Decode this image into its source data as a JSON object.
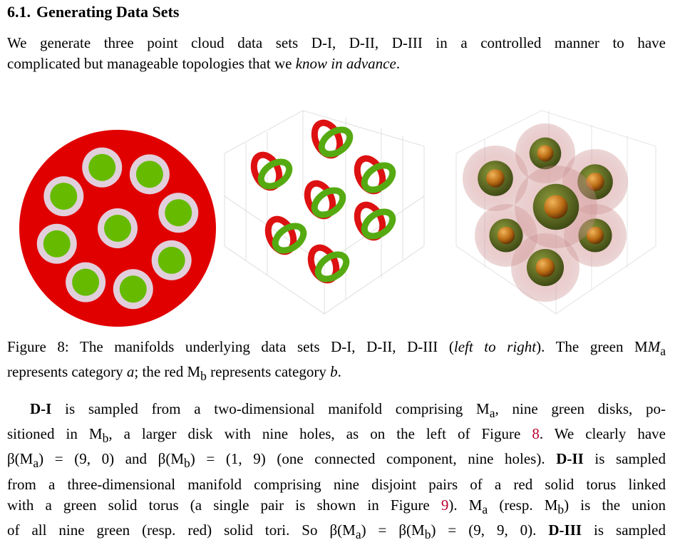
{
  "section": {
    "number": "6.1.",
    "title": "Generating Data Sets"
  },
  "intro": {
    "line1": "We generate three point cloud data sets D-I, D-II, D-III in a controlled manner to have",
    "line2_pre": "complicated but manageable topologies that we ",
    "line2_em": "know in advance",
    "line2_post": "."
  },
  "figure": {
    "panels": [
      "D-I",
      "D-II",
      "D-III"
    ],
    "colors": {
      "red": "#e00000",
      "green": "#66bb00",
      "ring": "#e2cfdc",
      "torus_green": "#55aa11",
      "torus_red": "#dd1111",
      "pink_shell": "#e9b5b5",
      "olive": "#6b7a2a",
      "orange_core": "#c97a1a"
    }
  },
  "caption": {
    "line1_pre": "Figure 8: The manifolds underlying data sets D-I, D-II, D-III (",
    "line1_em": "left to right",
    "line1_post": "). The green M",
    "line1_sub": "a",
    "line2_pre": "represents category ",
    "line2_a": "a",
    "line2_mid": "; the red M",
    "line2_sub": "b",
    "line2_post": " represents category ",
    "line2_b": "b",
    "line2_end": "."
  },
  "body": {
    "l1_bold": "D-I",
    "l1_text": " is sampled from a two-dimensional manifold comprising M",
    "l1_sub": "a",
    "l1_end": ", nine green disks, po-",
    "l2_pre": "sitioned in M",
    "l2_sub": "b",
    "l2_mid": ", a larger disk with nine holes, as on the left of Figure ",
    "l2_ref": "8",
    "l2_end": ". We clearly have",
    "l3_a": "β(M",
    "l3_a_sub": "a",
    "l3_a_val": ") = (9, 0) and β(M",
    "l3_b_sub": "b",
    "l3_b_val": ") = (1, 9) (one connected component, nine holes). ",
    "l3_bold": "D-II",
    "l3_end": " is sampled",
    "l4": "from a three-dimensional manifold comprising nine disjoint pairs of a red solid torus linked",
    "l5_pre": "with a green solid torus (a single pair is shown in Figure ",
    "l5_ref": "9",
    "l5_mid": "). M",
    "l5_sub_a": "a",
    "l5_mid2": " (resp. M",
    "l5_sub_b": "b",
    "l5_end": ") is the union",
    "l6_pre": "of all nine green (resp. red) solid tori. So β(M",
    "l6_sub_a": "a",
    "l6_mid": ") = β(M",
    "l6_sub_b": "b",
    "l6_mid2": ") = (9, 9, 0). ",
    "l6_bold": "D-III",
    "l6_end": " is sampled"
  }
}
